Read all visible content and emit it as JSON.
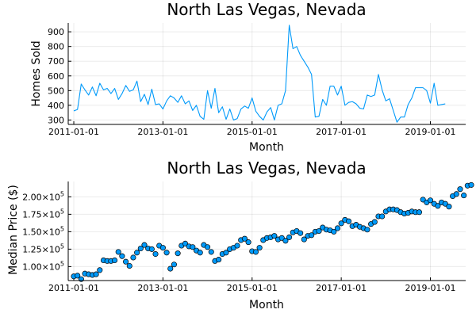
{
  "chart_data": [
    {
      "type": "line",
      "title": "North Las Vegas, Nevada",
      "xlabel": "Month",
      "ylabel": "Homes Sold",
      "color": "#009AFA",
      "x_start": "2011-01-01",
      "x_ticks": [
        "2011-01-01",
        "2013-01-01",
        "2015-01-01",
        "2017-01-01",
        "2019-01-01"
      ],
      "y_ticks": [
        "300",
        "400",
        "500",
        "600",
        "700",
        "800",
        "900"
      ],
      "y_tick_values": [
        300,
        400,
        500,
        600,
        700,
        800,
        900
      ],
      "ylim": [
        270,
        960
      ],
      "grid": true,
      "legend": "none",
      "values": [
        362,
        372,
        545,
        505,
        470,
        525,
        465,
        550,
        505,
        515,
        480,
        515,
        440,
        480,
        535,
        495,
        505,
        565,
        425,
        475,
        405,
        510,
        405,
        410,
        375,
        430,
        465,
        450,
        420,
        465,
        410,
        430,
        365,
        400,
        325,
        305,
        500,
        380,
        515,
        350,
        390,
        305,
        375,
        300,
        310,
        375,
        395,
        380,
        450,
        360,
        325,
        300,
        355,
        385,
        300,
        400,
        410,
        500,
        945,
        785,
        800,
        740,
        700,
        660,
        610,
        320,
        325,
        440,
        400,
        530,
        530,
        470,
        530,
        400,
        420,
        425,
        410,
        380,
        375,
        470,
        460,
        470,
        610,
        505,
        430,
        445,
        365,
        285,
        320,
        320,
        405,
        450,
        520,
        520,
        520,
        500,
        415,
        550,
        400,
        405,
        410
      ]
    },
    {
      "type": "scatter",
      "title": "North Las Vegas, Nevada",
      "xlabel": "Month",
      "ylabel": "Median Price ($)",
      "color": "#009AFA",
      "x_start": "2011-01-01",
      "x_ticks": [
        "2011-01-01",
        "2013-01-01",
        "2015-01-01",
        "2017-01-01",
        "2019-01-01"
      ],
      "y_ticks": [
        {
          "mantissa": "1.00",
          "exp": "5"
        },
        {
          "mantissa": "1.25",
          "exp": "5"
        },
        {
          "mantissa": "1.50",
          "exp": "5"
        },
        {
          "mantissa": "1.75",
          "exp": "5"
        },
        {
          "mantissa": "2.00",
          "exp": "5"
        }
      ],
      "y_tick_values": [
        100000,
        125000,
        150000,
        175000,
        200000
      ],
      "ylim": [
        80000,
        222000
      ],
      "grid": true,
      "legend": "none",
      "values": [
        86000,
        87000,
        82000,
        90000,
        89000,
        88000,
        89000,
        95000,
        109000,
        108000,
        108000,
        109000,
        121000,
        115000,
        107000,
        101000,
        113000,
        120000,
        126000,
        131000,
        126000,
        125000,
        118000,
        130000,
        127000,
        120000,
        97000,
        103000,
        119000,
        130000,
        133000,
        129000,
        128000,
        123000,
        120000,
        131000,
        128000,
        121000,
        108000,
        110000,
        118000,
        120000,
        125000,
        127000,
        130000,
        138000,
        140000,
        135000,
        122000,
        121000,
        127000,
        138000,
        141000,
        142000,
        144000,
        139000,
        141000,
        137000,
        142000,
        149000,
        151000,
        148000,
        139000,
        144000,
        145000,
        150000,
        151000,
        156000,
        153000,
        152000,
        150000,
        155000,
        162000,
        167000,
        165000,
        158000,
        160000,
        157000,
        155000,
        153000,
        161000,
        164000,
        172000,
        172000,
        179000,
        182000,
        182000,
        181000,
        178000,
        176000,
        177000,
        179000,
        178000,
        178000,
        196000,
        192000,
        195000,
        190000,
        187000,
        192000,
        190000,
        186000,
        201000,
        204000,
        211000,
        202000,
        216000,
        217000
      ]
    }
  ]
}
